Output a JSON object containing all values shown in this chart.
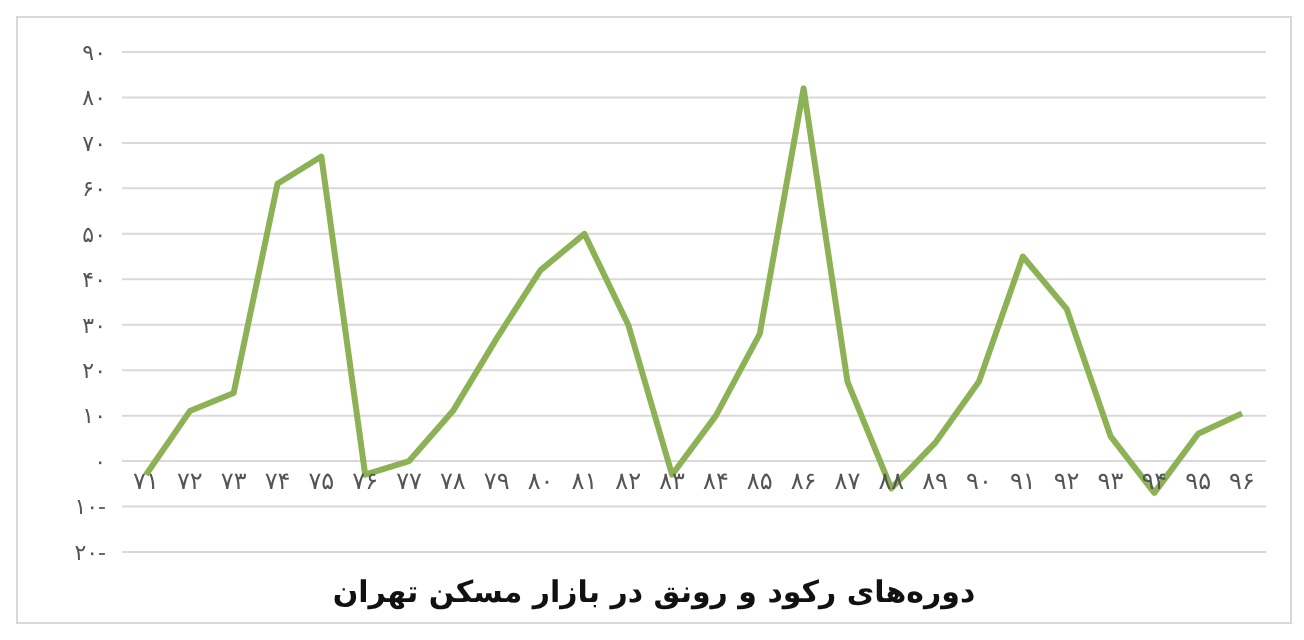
{
  "chart_data": {
    "type": "line",
    "title": "دوره‌های رکود و رونق در بازار مسکن تهران",
    "categories": [
      "۷۱",
      "۷۲",
      "۷۳",
      "۷۴",
      "۷۵",
      "۷۶",
      "۷۷",
      "۷۸",
      "۷۹",
      "۸۰",
      "۸۱",
      "۸۲",
      "۸۳",
      "۸۴",
      "۸۵",
      "۸۶",
      "۸۷",
      "۸۸",
      "۸۹",
      "۹۰",
      "۹۱",
      "۹۲",
      "۹۳",
      "۹۴",
      "۹۵",
      "۹۶"
    ],
    "series": [
      {
        "color": "#8db255",
        "values": [
          -3,
          11,
          15,
          61,
          67,
          -3,
          0,
          11,
          27,
          42,
          50,
          30,
          -3,
          10,
          28,
          82,
          17.5,
          -6,
          4,
          17.5,
          45,
          33.5,
          5.5,
          -7,
          6,
          10.5
        ]
      }
    ],
    "ylim": [
      -20,
      90
    ],
    "yticks": [
      {
        "value": -20,
        "label": "۲۰-"
      },
      {
        "value": -10,
        "label": "۱۰-"
      },
      {
        "value": 0,
        "label": "۰"
      },
      {
        "value": 10,
        "label": "۱۰"
      },
      {
        "value": 20,
        "label": "۲۰"
      },
      {
        "value": 30,
        "label": "۳۰"
      },
      {
        "value": 40,
        "label": "۴۰"
      },
      {
        "value": 50,
        "label": "۵۰"
      },
      {
        "value": 60,
        "label": "۶۰"
      },
      {
        "value": 70,
        "label": "۷۰"
      },
      {
        "value": 80,
        "label": "۸۰"
      },
      {
        "value": 90,
        "label": "۹۰"
      }
    ],
    "grid": "y",
    "legend": false,
    "marker": "none",
    "line_style": "solid"
  }
}
